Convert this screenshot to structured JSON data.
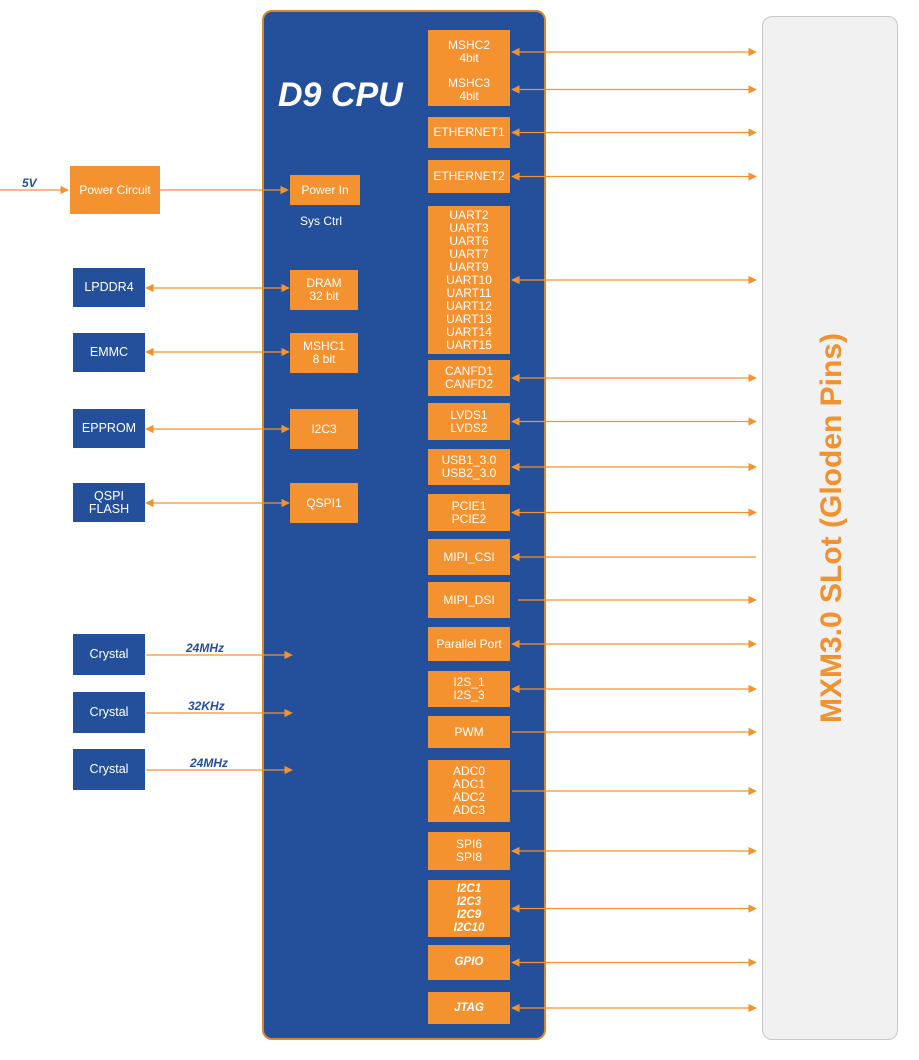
{
  "cpu": {
    "title": "D9 CPU",
    "sys_ctrl": "Sys Ctrl"
  },
  "slot": {
    "title": "MXM3.0 SLot (Gloden Pins)"
  },
  "power": {
    "voltage": "5V",
    "circuit": "Power Circuit",
    "power_in": "Power In"
  },
  "memory": [
    {
      "ext": "LPDDR4",
      "int": "DRAM\n32 bit"
    },
    {
      "ext": "EMMC",
      "int": "MSHC1\n8 bit"
    },
    {
      "ext": "EPPROM",
      "int": "I2C3"
    },
    {
      "ext": "QSPI\nFLASH",
      "int": "QSPI1"
    }
  ],
  "crystals": [
    {
      "label": "Crystal",
      "freq": "24MHz"
    },
    {
      "label": "Crystal",
      "freq": "32KHz"
    },
    {
      "label": "Crystal",
      "freq": "24MHz"
    }
  ],
  "interfaces": [
    {
      "label": "MSHC2\n4bit",
      "dir": "both"
    },
    {
      "label": "MSHC3\n4bit",
      "dir": "both"
    },
    {
      "label": "ETHERNET1",
      "dir": "both"
    },
    {
      "label": "ETHERNET2",
      "dir": "both"
    },
    {
      "label": "UART2\nUART3\nUART6\nUART7\nUART9\nUART10\nUART11\nUART12\nUART13\nUART14\nUART15",
      "dir": "both"
    },
    {
      "label": "CANFD1\nCANFD2",
      "dir": "both"
    },
    {
      "label": "LVDS1\nLVDS2",
      "dir": "both"
    },
    {
      "label": "USB1_3.0\nUSB2_3.0",
      "dir": "both"
    },
    {
      "label": "PCIE1\nPCIE2",
      "dir": "both"
    },
    {
      "label": "MIPI_CSI",
      "dir": "in"
    },
    {
      "label": "MIPI_DSI",
      "dir": "out"
    },
    {
      "label": "Parallel Port",
      "dir": "both"
    },
    {
      "label": "I2S_1\nI2S_3",
      "dir": "both"
    },
    {
      "label": "PWM",
      "dir": "out"
    },
    {
      "label": "ADC0\nADC1\nADC2\nADC3",
      "dir": "out"
    },
    {
      "label": "SPI6\nSPI8",
      "dir": "both"
    },
    {
      "label": "I2C1\nI2C3\nI2C9\nI2C10",
      "dir": "both",
      "style": "bold-italic"
    },
    {
      "label": "GPIO",
      "dir": "both",
      "style": "bold-italic"
    },
    {
      "label": "JTAG",
      "dir": "both",
      "style": "bold-italic"
    }
  ],
  "colors": {
    "cpu_blue": "#24509b",
    "orange": "#f4922f",
    "slot_bg": "#f1f1f1"
  }
}
